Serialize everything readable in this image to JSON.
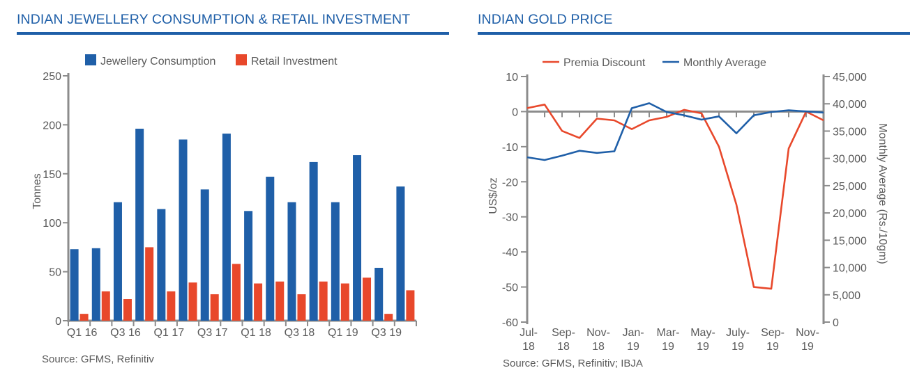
{
  "panels": {
    "left": {
      "title": "INDIAN JEWELLERY CONSUMPTION & RETAIL INVESTMENT",
      "source": "Source: GFMS, Refinitiv"
    },
    "right": {
      "title": "INDIAN GOLD PRICE",
      "source": "Source: GFMS, Refinitiv; IBJA"
    }
  },
  "colors": {
    "blue": "#1f5fa8",
    "orange": "#e8482b",
    "axis": "#8c8c8c"
  },
  "chart_data": [
    {
      "type": "bar",
      "title": "INDIAN JEWELLERY CONSUMPTION & RETAIL INVESTMENT",
      "ylabel": "Tonnes",
      "ylim": [
        0,
        250
      ],
      "yticks": [
        0,
        50,
        100,
        150,
        200,
        250
      ],
      "grid": false,
      "legend": "top",
      "categories": [
        "Q1 16",
        "Q2 16",
        "Q3 16",
        "Q4 16",
        "Q1 17",
        "Q2 17",
        "Q3 17",
        "Q4 17",
        "Q1 18",
        "Q2 18",
        "Q3 18",
        "Q4 18",
        "Q1 19",
        "Q2 19",
        "Q3 19",
        "Q4 19"
      ],
      "category_labels": [
        "Q1 16",
        "",
        "Q3 16",
        "",
        "Q1 17",
        "",
        "Q3 17",
        "",
        "Q1 18",
        "",
        "Q3 18",
        "",
        "Q1 19",
        "",
        "Q3 19",
        ""
      ],
      "series": [
        {
          "name": "Jewellery Consumption",
          "color": "#1f5fa8",
          "values": [
            73,
            74,
            121,
            196,
            114,
            185,
            134,
            191,
            112,
            147,
            121,
            162,
            121,
            169,
            54,
            137
          ]
        },
        {
          "name": "Retail Investment",
          "color": "#e8482b",
          "values": [
            7,
            30,
            22,
            75,
            30,
            39,
            27,
            58,
            38,
            40,
            27,
            40,
            38,
            44,
            7,
            31
          ]
        }
      ]
    },
    {
      "type": "line",
      "title": "INDIAN GOLD PRICE",
      "ylabel": "US$/oz",
      "y2label": "Monthly Average (Rs./10gm)",
      "ylim": [
        -60,
        10
      ],
      "yticks": [
        10,
        0,
        -10,
        -20,
        -30,
        -40,
        -50,
        -60
      ],
      "y2lim": [
        0,
        45000
      ],
      "y2ticks": [
        "45,000",
        "40,000",
        "35,000",
        "30,000",
        "25,000",
        "20,000",
        "15,000",
        "10,000",
        "5,000",
        "0"
      ],
      "grid": false,
      "legend": "top",
      "x": [
        "Jul-18",
        "Aug-18",
        "Sep-18",
        "Oct-18",
        "Nov-18",
        "Dec-18",
        "Jan-19",
        "Feb-19",
        "Mar-19",
        "Apr-19",
        "May-19",
        "Jun-19",
        "Jul-19",
        "Aug-19",
        "Sep-19",
        "Oct-19",
        "Nov-19",
        "Dec-19"
      ],
      "x_tick_labels": [
        [
          "Jul-",
          "18"
        ],
        [
          "Sep-",
          "18"
        ],
        [
          "Nov-",
          "18"
        ],
        [
          "Jan-",
          "19"
        ],
        [
          "Mar-",
          "19"
        ],
        [
          "May-",
          "19"
        ],
        [
          "July-",
          "19"
        ],
        [
          "Sep-",
          "19"
        ],
        [
          "Nov-",
          "19"
        ]
      ],
      "x_tick_index": [
        0,
        2,
        4,
        6,
        8,
        10,
        12,
        14,
        16
      ],
      "series": [
        {
          "name": "Premia Discount",
          "axis": "left",
          "color": "#e8482b",
          "values": [
            1,
            2,
            -5.5,
            -7.5,
            -2,
            -2.5,
            -5,
            -2.5,
            -1.5,
            0.5,
            -0.5,
            -10,
            -26.5,
            -50,
            -50.5,
            -10.5,
            0,
            -2.5
          ]
        },
        {
          "name": "Monthly Average",
          "axis": "right",
          "color": "#1f5fa8",
          "values": [
            30200,
            29700,
            30500,
            31400,
            31000,
            31300,
            39200,
            40100,
            38500,
            37900,
            37100,
            37700,
            34600,
            37900,
            38500,
            38800,
            38600,
            38400
          ]
        }
      ]
    }
  ]
}
